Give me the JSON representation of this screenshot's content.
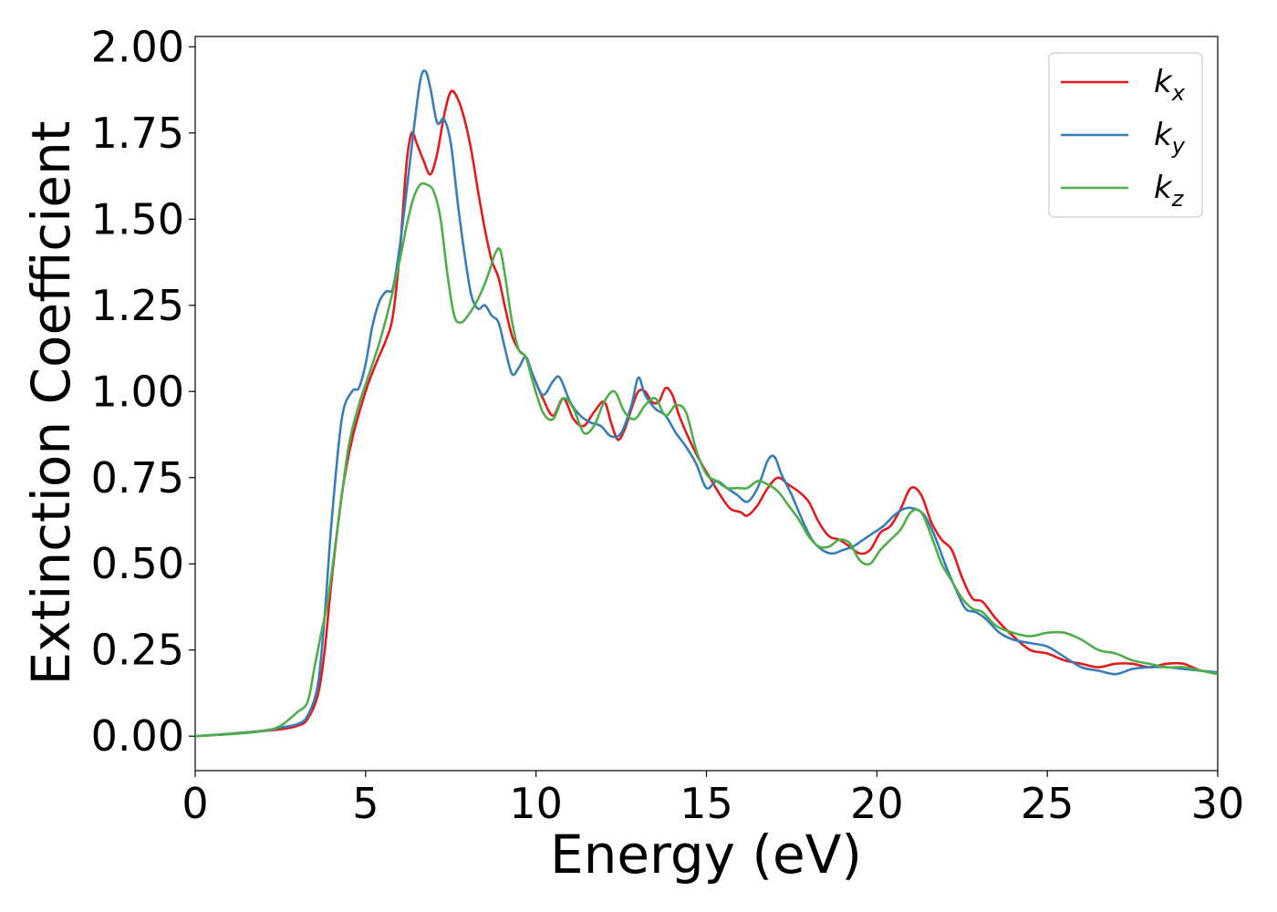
{
  "chart_data": {
    "type": "line",
    "title": "",
    "xlabel": "Energy (eV)",
    "ylabel": "Extinction Coefficient",
    "xlim": [
      0,
      30
    ],
    "ylim": [
      -0.1,
      2.03
    ],
    "xticks": [
      0,
      5,
      10,
      15,
      20,
      25,
      30
    ],
    "xtick_labels": [
      "0",
      "5",
      "10",
      "15",
      "20",
      "25",
      "30"
    ],
    "yticks": [
      0.0,
      0.25,
      0.5,
      0.75,
      1.0,
      1.25,
      1.5,
      1.75,
      2.0
    ],
    "ytick_labels": [
      "0.00",
      "0.25",
      "0.50",
      "0.75",
      "1.00",
      "1.25",
      "1.50",
      "1.75",
      "2.00"
    ],
    "grid": false,
    "legend_position": "top-right",
    "series": [
      {
        "name": "k",
        "subscript": "x",
        "color": "#e41a1c",
        "x": [
          0,
          1,
          2,
          2.5,
          3,
          3.3,
          3.6,
          3.8,
          4,
          4.3,
          4.6,
          5,
          5.3,
          5.6,
          5.8,
          6,
          6.2,
          6.35,
          6.5,
          6.7,
          6.9,
          7.1,
          7.3,
          7.5,
          7.7,
          7.9,
          8.1,
          8.3,
          8.5,
          8.7,
          8.9,
          9.1,
          9.3,
          9.5,
          9.7,
          9.9,
          10.2,
          10.5,
          10.8,
          11.1,
          11.4,
          11.7,
          12,
          12.2,
          12.4,
          12.6,
          12.8,
          13,
          13.2,
          13.4,
          13.6,
          13.8,
          14,
          14.2,
          14.5,
          14.8,
          15.1,
          15.4,
          15.7,
          16,
          16.2,
          16.5,
          16.8,
          17.1,
          17.4,
          17.7,
          18,
          18.3,
          18.6,
          18.9,
          19.2,
          19.5,
          19.8,
          20.1,
          20.4,
          20.7,
          21,
          21.3,
          21.6,
          21.9,
          22.2,
          22.5,
          22.8,
          23.1,
          23.5,
          24,
          24.5,
          25,
          25.5,
          26,
          26.5,
          27,
          27.5,
          28,
          28.5,
          29,
          29.5,
          30
        ],
        "values": [
          0.0,
          0.006,
          0.015,
          0.02,
          0.03,
          0.05,
          0.12,
          0.25,
          0.45,
          0.7,
          0.86,
          1.0,
          1.08,
          1.15,
          1.22,
          1.4,
          1.66,
          1.75,
          1.72,
          1.67,
          1.63,
          1.69,
          1.8,
          1.87,
          1.85,
          1.79,
          1.7,
          1.58,
          1.47,
          1.38,
          1.33,
          1.24,
          1.16,
          1.12,
          1.1,
          1.05,
          0.98,
          0.93,
          0.98,
          0.92,
          0.9,
          0.94,
          0.97,
          0.91,
          0.86,
          0.89,
          0.95,
          1.0,
          1.0,
          0.97,
          0.97,
          1.01,
          0.99,
          0.93,
          0.86,
          0.8,
          0.75,
          0.7,
          0.66,
          0.65,
          0.64,
          0.67,
          0.72,
          0.75,
          0.73,
          0.71,
          0.68,
          0.62,
          0.58,
          0.57,
          0.55,
          0.53,
          0.54,
          0.59,
          0.61,
          0.66,
          0.72,
          0.7,
          0.62,
          0.57,
          0.54,
          0.46,
          0.4,
          0.39,
          0.34,
          0.29,
          0.25,
          0.24,
          0.22,
          0.21,
          0.2,
          0.21,
          0.21,
          0.2,
          0.21,
          0.21,
          0.19,
          0.185
        ]
      },
      {
        "name": "k",
        "subscript": "y",
        "color": "#377eb8",
        "x": [
          0,
          1,
          2,
          2.5,
          3,
          3.3,
          3.6,
          3.8,
          4,
          4.3,
          4.6,
          4.8,
          5,
          5.2,
          5.4,
          5.6,
          5.8,
          6,
          6.2,
          6.4,
          6.6,
          6.75,
          6.9,
          7.1,
          7.3,
          7.5,
          7.7,
          7.9,
          8.1,
          8.3,
          8.5,
          8.7,
          8.9,
          9.1,
          9.3,
          9.5,
          9.7,
          9.9,
          10.2,
          10.5,
          10.7,
          11,
          11.3,
          11.6,
          11.9,
          12.2,
          12.5,
          12.8,
          13,
          13.2,
          13.5,
          13.8,
          14.1,
          14.4,
          14.7,
          15,
          15.3,
          15.6,
          15.9,
          16.2,
          16.5,
          16.8,
          17,
          17.2,
          17.5,
          17.8,
          18.1,
          18.4,
          18.7,
          19,
          19.3,
          19.6,
          19.9,
          20.2,
          20.5,
          20.8,
          21.1,
          21.4,
          21.7,
          22,
          22.3,
          22.6,
          22.9,
          23.2,
          23.6,
          24,
          24.5,
          25,
          25.5,
          26,
          26.5,
          27,
          27.5,
          28,
          28.5,
          29,
          29.5,
          30
        ],
        "values": [
          0.0,
          0.007,
          0.016,
          0.025,
          0.035,
          0.06,
          0.15,
          0.35,
          0.62,
          0.92,
          1.0,
          1.01,
          1.08,
          1.19,
          1.26,
          1.29,
          1.3,
          1.42,
          1.58,
          1.75,
          1.9,
          1.93,
          1.88,
          1.78,
          1.79,
          1.72,
          1.55,
          1.4,
          1.28,
          1.24,
          1.25,
          1.22,
          1.2,
          1.12,
          1.05,
          1.07,
          1.1,
          1.05,
          0.99,
          1.03,
          1.04,
          0.97,
          0.93,
          0.91,
          0.9,
          0.87,
          0.88,
          0.96,
          1.04,
          0.99,
          0.95,
          0.93,
          0.88,
          0.84,
          0.79,
          0.72,
          0.74,
          0.72,
          0.7,
          0.68,
          0.72,
          0.8,
          0.81,
          0.76,
          0.7,
          0.63,
          0.57,
          0.54,
          0.53,
          0.54,
          0.55,
          0.57,
          0.59,
          0.61,
          0.64,
          0.66,
          0.66,
          0.64,
          0.58,
          0.5,
          0.43,
          0.37,
          0.36,
          0.34,
          0.3,
          0.28,
          0.27,
          0.26,
          0.23,
          0.2,
          0.19,
          0.18,
          0.195,
          0.2,
          0.2,
          0.195,
          0.19,
          0.185
        ]
      },
      {
        "name": "k",
        "subscript": "z",
        "color": "#4daf4a",
        "x": [
          0,
          1,
          2,
          2.5,
          3,
          3.3,
          3.5,
          3.7,
          3.9,
          4.2,
          4.5,
          4.8,
          5.1,
          5.4,
          5.7,
          6,
          6.2,
          6.4,
          6.6,
          6.8,
          7,
          7.2,
          7.4,
          7.6,
          7.8,
          8,
          8.2,
          8.4,
          8.6,
          8.8,
          8.95,
          9.1,
          9.3,
          9.5,
          9.7,
          9.9,
          10.2,
          10.5,
          10.8,
          11.1,
          11.4,
          11.7,
          12,
          12.3,
          12.6,
          12.9,
          13.2,
          13.5,
          13.8,
          14.1,
          14.4,
          14.7,
          15,
          15.3,
          15.6,
          15.9,
          16.2,
          16.5,
          16.8,
          17.1,
          17.4,
          17.7,
          18,
          18.3,
          18.6,
          18.9,
          19.2,
          19.5,
          19.8,
          20.1,
          20.4,
          20.7,
          21,
          21.3,
          21.6,
          21.9,
          22.2,
          22.5,
          22.8,
          23.1,
          23.5,
          24,
          24.5,
          25,
          25.5,
          26,
          26.5,
          27,
          27.5,
          28,
          28.5,
          29,
          29.5,
          30
        ],
        "values": [
          0.0,
          0.006,
          0.015,
          0.03,
          0.07,
          0.1,
          0.2,
          0.3,
          0.4,
          0.62,
          0.84,
          0.96,
          1.05,
          1.14,
          1.25,
          1.38,
          1.48,
          1.56,
          1.6,
          1.6,
          1.58,
          1.5,
          1.34,
          1.22,
          1.2,
          1.22,
          1.25,
          1.29,
          1.34,
          1.4,
          1.41,
          1.33,
          1.2,
          1.12,
          1.1,
          1.03,
          0.94,
          0.92,
          0.98,
          0.95,
          0.88,
          0.9,
          0.97,
          1.0,
          0.94,
          0.92,
          0.96,
          0.98,
          0.93,
          0.96,
          0.94,
          0.83,
          0.76,
          0.74,
          0.72,
          0.72,
          0.72,
          0.74,
          0.73,
          0.71,
          0.67,
          0.63,
          0.58,
          0.55,
          0.55,
          0.57,
          0.56,
          0.51,
          0.5,
          0.54,
          0.57,
          0.6,
          0.65,
          0.65,
          0.58,
          0.5,
          0.45,
          0.4,
          0.37,
          0.36,
          0.32,
          0.3,
          0.29,
          0.3,
          0.3,
          0.28,
          0.25,
          0.24,
          0.22,
          0.21,
          0.2,
          0.2,
          0.19,
          0.18
        ]
      }
    ]
  }
}
